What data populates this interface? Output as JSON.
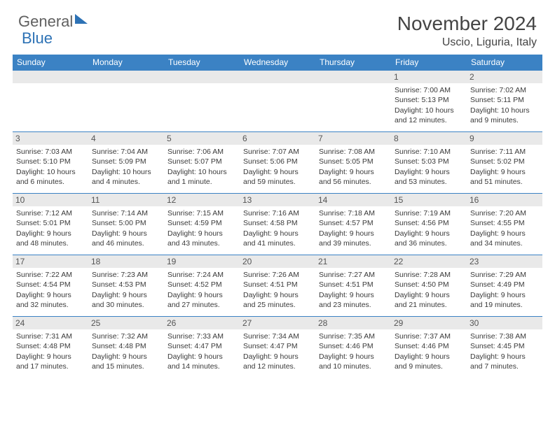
{
  "logo": {
    "part1": "General",
    "part2": "Blue"
  },
  "title": "November 2024",
  "location": "Uscio, Liguria, Italy",
  "colors": {
    "header_bg": "#3b82c4",
    "row_divider": "#3b82c4",
    "daynum_bg": "#e9e9e9",
    "text": "#3a3a3a",
    "logo_gray": "#606060",
    "logo_blue": "#2d72b5",
    "background": "#ffffff"
  },
  "dow": [
    "Sunday",
    "Monday",
    "Tuesday",
    "Wednesday",
    "Thursday",
    "Friday",
    "Saturday"
  ],
  "weeks": [
    [
      {
        "n": "",
        "sunrise": "",
        "sunset": "",
        "daylight": ""
      },
      {
        "n": "",
        "sunrise": "",
        "sunset": "",
        "daylight": ""
      },
      {
        "n": "",
        "sunrise": "",
        "sunset": "",
        "daylight": ""
      },
      {
        "n": "",
        "sunrise": "",
        "sunset": "",
        "daylight": ""
      },
      {
        "n": "",
        "sunrise": "",
        "sunset": "",
        "daylight": ""
      },
      {
        "n": "1",
        "sunrise": "Sunrise: 7:00 AM",
        "sunset": "Sunset: 5:13 PM",
        "daylight": "Daylight: 10 hours and 12 minutes."
      },
      {
        "n": "2",
        "sunrise": "Sunrise: 7:02 AM",
        "sunset": "Sunset: 5:11 PM",
        "daylight": "Daylight: 10 hours and 9 minutes."
      }
    ],
    [
      {
        "n": "3",
        "sunrise": "Sunrise: 7:03 AM",
        "sunset": "Sunset: 5:10 PM",
        "daylight": "Daylight: 10 hours and 6 minutes."
      },
      {
        "n": "4",
        "sunrise": "Sunrise: 7:04 AM",
        "sunset": "Sunset: 5:09 PM",
        "daylight": "Daylight: 10 hours and 4 minutes."
      },
      {
        "n": "5",
        "sunrise": "Sunrise: 7:06 AM",
        "sunset": "Sunset: 5:07 PM",
        "daylight": "Daylight: 10 hours and 1 minute."
      },
      {
        "n": "6",
        "sunrise": "Sunrise: 7:07 AM",
        "sunset": "Sunset: 5:06 PM",
        "daylight": "Daylight: 9 hours and 59 minutes."
      },
      {
        "n": "7",
        "sunrise": "Sunrise: 7:08 AM",
        "sunset": "Sunset: 5:05 PM",
        "daylight": "Daylight: 9 hours and 56 minutes."
      },
      {
        "n": "8",
        "sunrise": "Sunrise: 7:10 AM",
        "sunset": "Sunset: 5:03 PM",
        "daylight": "Daylight: 9 hours and 53 minutes."
      },
      {
        "n": "9",
        "sunrise": "Sunrise: 7:11 AM",
        "sunset": "Sunset: 5:02 PM",
        "daylight": "Daylight: 9 hours and 51 minutes."
      }
    ],
    [
      {
        "n": "10",
        "sunrise": "Sunrise: 7:12 AM",
        "sunset": "Sunset: 5:01 PM",
        "daylight": "Daylight: 9 hours and 48 minutes."
      },
      {
        "n": "11",
        "sunrise": "Sunrise: 7:14 AM",
        "sunset": "Sunset: 5:00 PM",
        "daylight": "Daylight: 9 hours and 46 minutes."
      },
      {
        "n": "12",
        "sunrise": "Sunrise: 7:15 AM",
        "sunset": "Sunset: 4:59 PM",
        "daylight": "Daylight: 9 hours and 43 minutes."
      },
      {
        "n": "13",
        "sunrise": "Sunrise: 7:16 AM",
        "sunset": "Sunset: 4:58 PM",
        "daylight": "Daylight: 9 hours and 41 minutes."
      },
      {
        "n": "14",
        "sunrise": "Sunrise: 7:18 AM",
        "sunset": "Sunset: 4:57 PM",
        "daylight": "Daylight: 9 hours and 39 minutes."
      },
      {
        "n": "15",
        "sunrise": "Sunrise: 7:19 AM",
        "sunset": "Sunset: 4:56 PM",
        "daylight": "Daylight: 9 hours and 36 minutes."
      },
      {
        "n": "16",
        "sunrise": "Sunrise: 7:20 AM",
        "sunset": "Sunset: 4:55 PM",
        "daylight": "Daylight: 9 hours and 34 minutes."
      }
    ],
    [
      {
        "n": "17",
        "sunrise": "Sunrise: 7:22 AM",
        "sunset": "Sunset: 4:54 PM",
        "daylight": "Daylight: 9 hours and 32 minutes."
      },
      {
        "n": "18",
        "sunrise": "Sunrise: 7:23 AM",
        "sunset": "Sunset: 4:53 PM",
        "daylight": "Daylight: 9 hours and 30 minutes."
      },
      {
        "n": "19",
        "sunrise": "Sunrise: 7:24 AM",
        "sunset": "Sunset: 4:52 PM",
        "daylight": "Daylight: 9 hours and 27 minutes."
      },
      {
        "n": "20",
        "sunrise": "Sunrise: 7:26 AM",
        "sunset": "Sunset: 4:51 PM",
        "daylight": "Daylight: 9 hours and 25 minutes."
      },
      {
        "n": "21",
        "sunrise": "Sunrise: 7:27 AM",
        "sunset": "Sunset: 4:51 PM",
        "daylight": "Daylight: 9 hours and 23 minutes."
      },
      {
        "n": "22",
        "sunrise": "Sunrise: 7:28 AM",
        "sunset": "Sunset: 4:50 PM",
        "daylight": "Daylight: 9 hours and 21 minutes."
      },
      {
        "n": "23",
        "sunrise": "Sunrise: 7:29 AM",
        "sunset": "Sunset: 4:49 PM",
        "daylight": "Daylight: 9 hours and 19 minutes."
      }
    ],
    [
      {
        "n": "24",
        "sunrise": "Sunrise: 7:31 AM",
        "sunset": "Sunset: 4:48 PM",
        "daylight": "Daylight: 9 hours and 17 minutes."
      },
      {
        "n": "25",
        "sunrise": "Sunrise: 7:32 AM",
        "sunset": "Sunset: 4:48 PM",
        "daylight": "Daylight: 9 hours and 15 minutes."
      },
      {
        "n": "26",
        "sunrise": "Sunrise: 7:33 AM",
        "sunset": "Sunset: 4:47 PM",
        "daylight": "Daylight: 9 hours and 14 minutes."
      },
      {
        "n": "27",
        "sunrise": "Sunrise: 7:34 AM",
        "sunset": "Sunset: 4:47 PM",
        "daylight": "Daylight: 9 hours and 12 minutes."
      },
      {
        "n": "28",
        "sunrise": "Sunrise: 7:35 AM",
        "sunset": "Sunset: 4:46 PM",
        "daylight": "Daylight: 9 hours and 10 minutes."
      },
      {
        "n": "29",
        "sunrise": "Sunrise: 7:37 AM",
        "sunset": "Sunset: 4:46 PM",
        "daylight": "Daylight: 9 hours and 9 minutes."
      },
      {
        "n": "30",
        "sunrise": "Sunrise: 7:38 AM",
        "sunset": "Sunset: 4:45 PM",
        "daylight": "Daylight: 9 hours and 7 minutes."
      }
    ]
  ]
}
